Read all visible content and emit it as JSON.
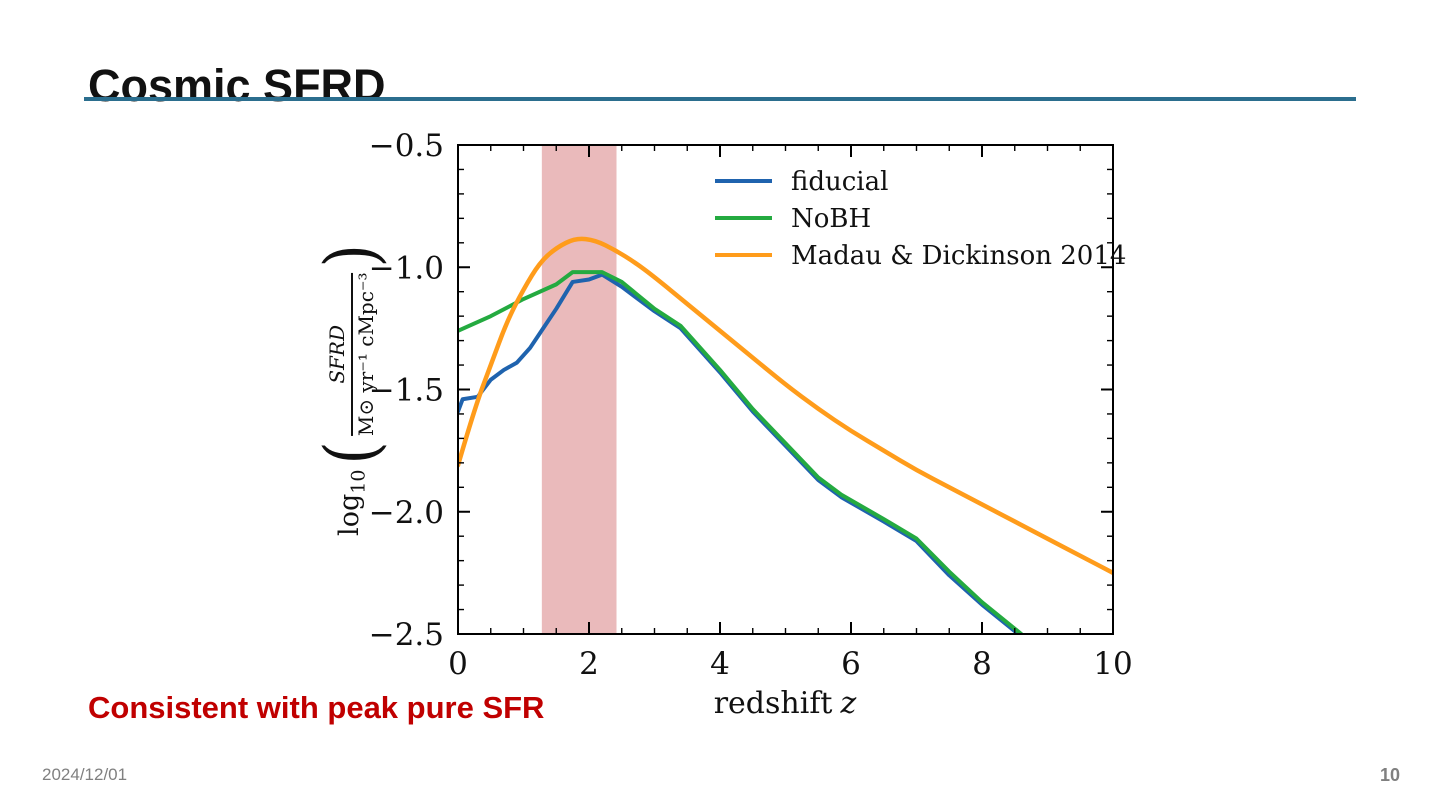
{
  "slide": {
    "title": "Cosmic SFRD",
    "note": "Consistent with peak pure SFR",
    "footer_date": "2024/12/01",
    "page_number": "10"
  },
  "theme": {
    "accent_rule_color": "#2b6e8e",
    "note_color": "#c00000",
    "footer_color": "#808080",
    "axis_color": "#000000"
  },
  "chart_labels": {
    "xlabel_text": "redshift",
    "xlabel_var": "z",
    "ylabel_log": "log",
    "ylabel_log_sub": "10",
    "ylabel_paren_open": "(",
    "ylabel_paren_close": ")",
    "ylabel_numerator": "SFRD",
    "ylabel_denominator": "M⊙ yr⁻¹ cMpc⁻³"
  },
  "chart_data": {
    "type": "line",
    "title": "",
    "xlabel": "redshift z",
    "ylabel": "log10( SFRD / (Msun yr^-1 cMpc^-3) )",
    "xlim": [
      0,
      10
    ],
    "ylim": [
      -2.5,
      -0.5
    ],
    "xticks": [
      {
        "v": 0,
        "label": "0"
      },
      {
        "v": 2,
        "label": "2"
      },
      {
        "v": 4,
        "label": "4"
      },
      {
        "v": 6,
        "label": "6"
      },
      {
        "v": 8,
        "label": "8"
      },
      {
        "v": 10,
        "label": "10"
      }
    ],
    "yticks": [
      {
        "v": -0.5,
        "label": "−0.5"
      },
      {
        "v": -1.0,
        "label": "−1.0"
      },
      {
        "v": -1.5,
        "label": "−1.5"
      },
      {
        "v": -2.0,
        "label": "−2.0"
      },
      {
        "v": -2.5,
        "label": "−2.5"
      }
    ],
    "x_minor_step": 0.5,
    "y_minor_step": 0.1,
    "grid": false,
    "legend_position": "upper-right-inside",
    "shaded_band": {
      "x_start": 1.28,
      "x_end": 2.42,
      "color": "#cb5256",
      "opacity": 0.4
    },
    "series": [
      {
        "name": "fiducial",
        "color": "#1f63ae",
        "width": 4,
        "smooth": false,
        "x": [
          0,
          0.07,
          0.3,
          0.5,
          0.7,
          0.9,
          1.1,
          1.3,
          1.5,
          1.75,
          2.0,
          2.2,
          2.5,
          3.0,
          3.4,
          4.0,
          4.5,
          5.0,
          5.5,
          5.85,
          6.5,
          7.0,
          7.5,
          8.0,
          8.6
        ],
        "y": [
          -1.59,
          -1.54,
          -1.53,
          -1.46,
          -1.42,
          -1.39,
          -1.33,
          -1.25,
          -1.17,
          -1.06,
          -1.05,
          -1.03,
          -1.08,
          -1.18,
          -1.25,
          -1.43,
          -1.59,
          -1.73,
          -1.87,
          -1.94,
          -2.04,
          -2.12,
          -2.26,
          -2.38,
          -2.51
        ]
      },
      {
        "name": "NoBH",
        "color": "#24aa40",
        "width": 4,
        "smooth": false,
        "x": [
          0,
          0.5,
          1.0,
          1.5,
          1.75,
          2.2,
          2.5,
          3.0,
          3.4,
          4.0,
          4.5,
          5.0,
          5.5,
          5.85,
          6.5,
          7.0,
          7.5,
          8.0,
          8.6
        ],
        "y": [
          -1.26,
          -1.2,
          -1.13,
          -1.07,
          -1.02,
          -1.02,
          -1.06,
          -1.17,
          -1.24,
          -1.42,
          -1.58,
          -1.72,
          -1.86,
          -1.93,
          -2.03,
          -2.11,
          -2.245,
          -2.37,
          -2.5
        ]
      },
      {
        "name": "Madau & Dickinson 2014",
        "color": "#ff9c1b",
        "width": 4.5,
        "smooth": true,
        "x": [
          0,
          0.25,
          0.5,
          0.75,
          1.0,
          1.25,
          1.5,
          1.8,
          2.1,
          2.4,
          2.7,
          3.0,
          3.5,
          4.0,
          4.5,
          5.0,
          5.5,
          6.0,
          6.5,
          7.0,
          7.5,
          8.0,
          8.5,
          9.0,
          9.5,
          10.0
        ],
        "y": [
          -1.81,
          -1.58,
          -1.4,
          -1.22,
          -1.09,
          -0.98,
          -0.92,
          -0.88,
          -0.89,
          -0.93,
          -0.98,
          -1.04,
          -1.15,
          -1.26,
          -1.37,
          -1.48,
          -1.58,
          -1.67,
          -1.75,
          -1.83,
          -1.9,
          -1.97,
          -2.04,
          -2.11,
          -2.18,
          -2.25
        ]
      }
    ]
  }
}
